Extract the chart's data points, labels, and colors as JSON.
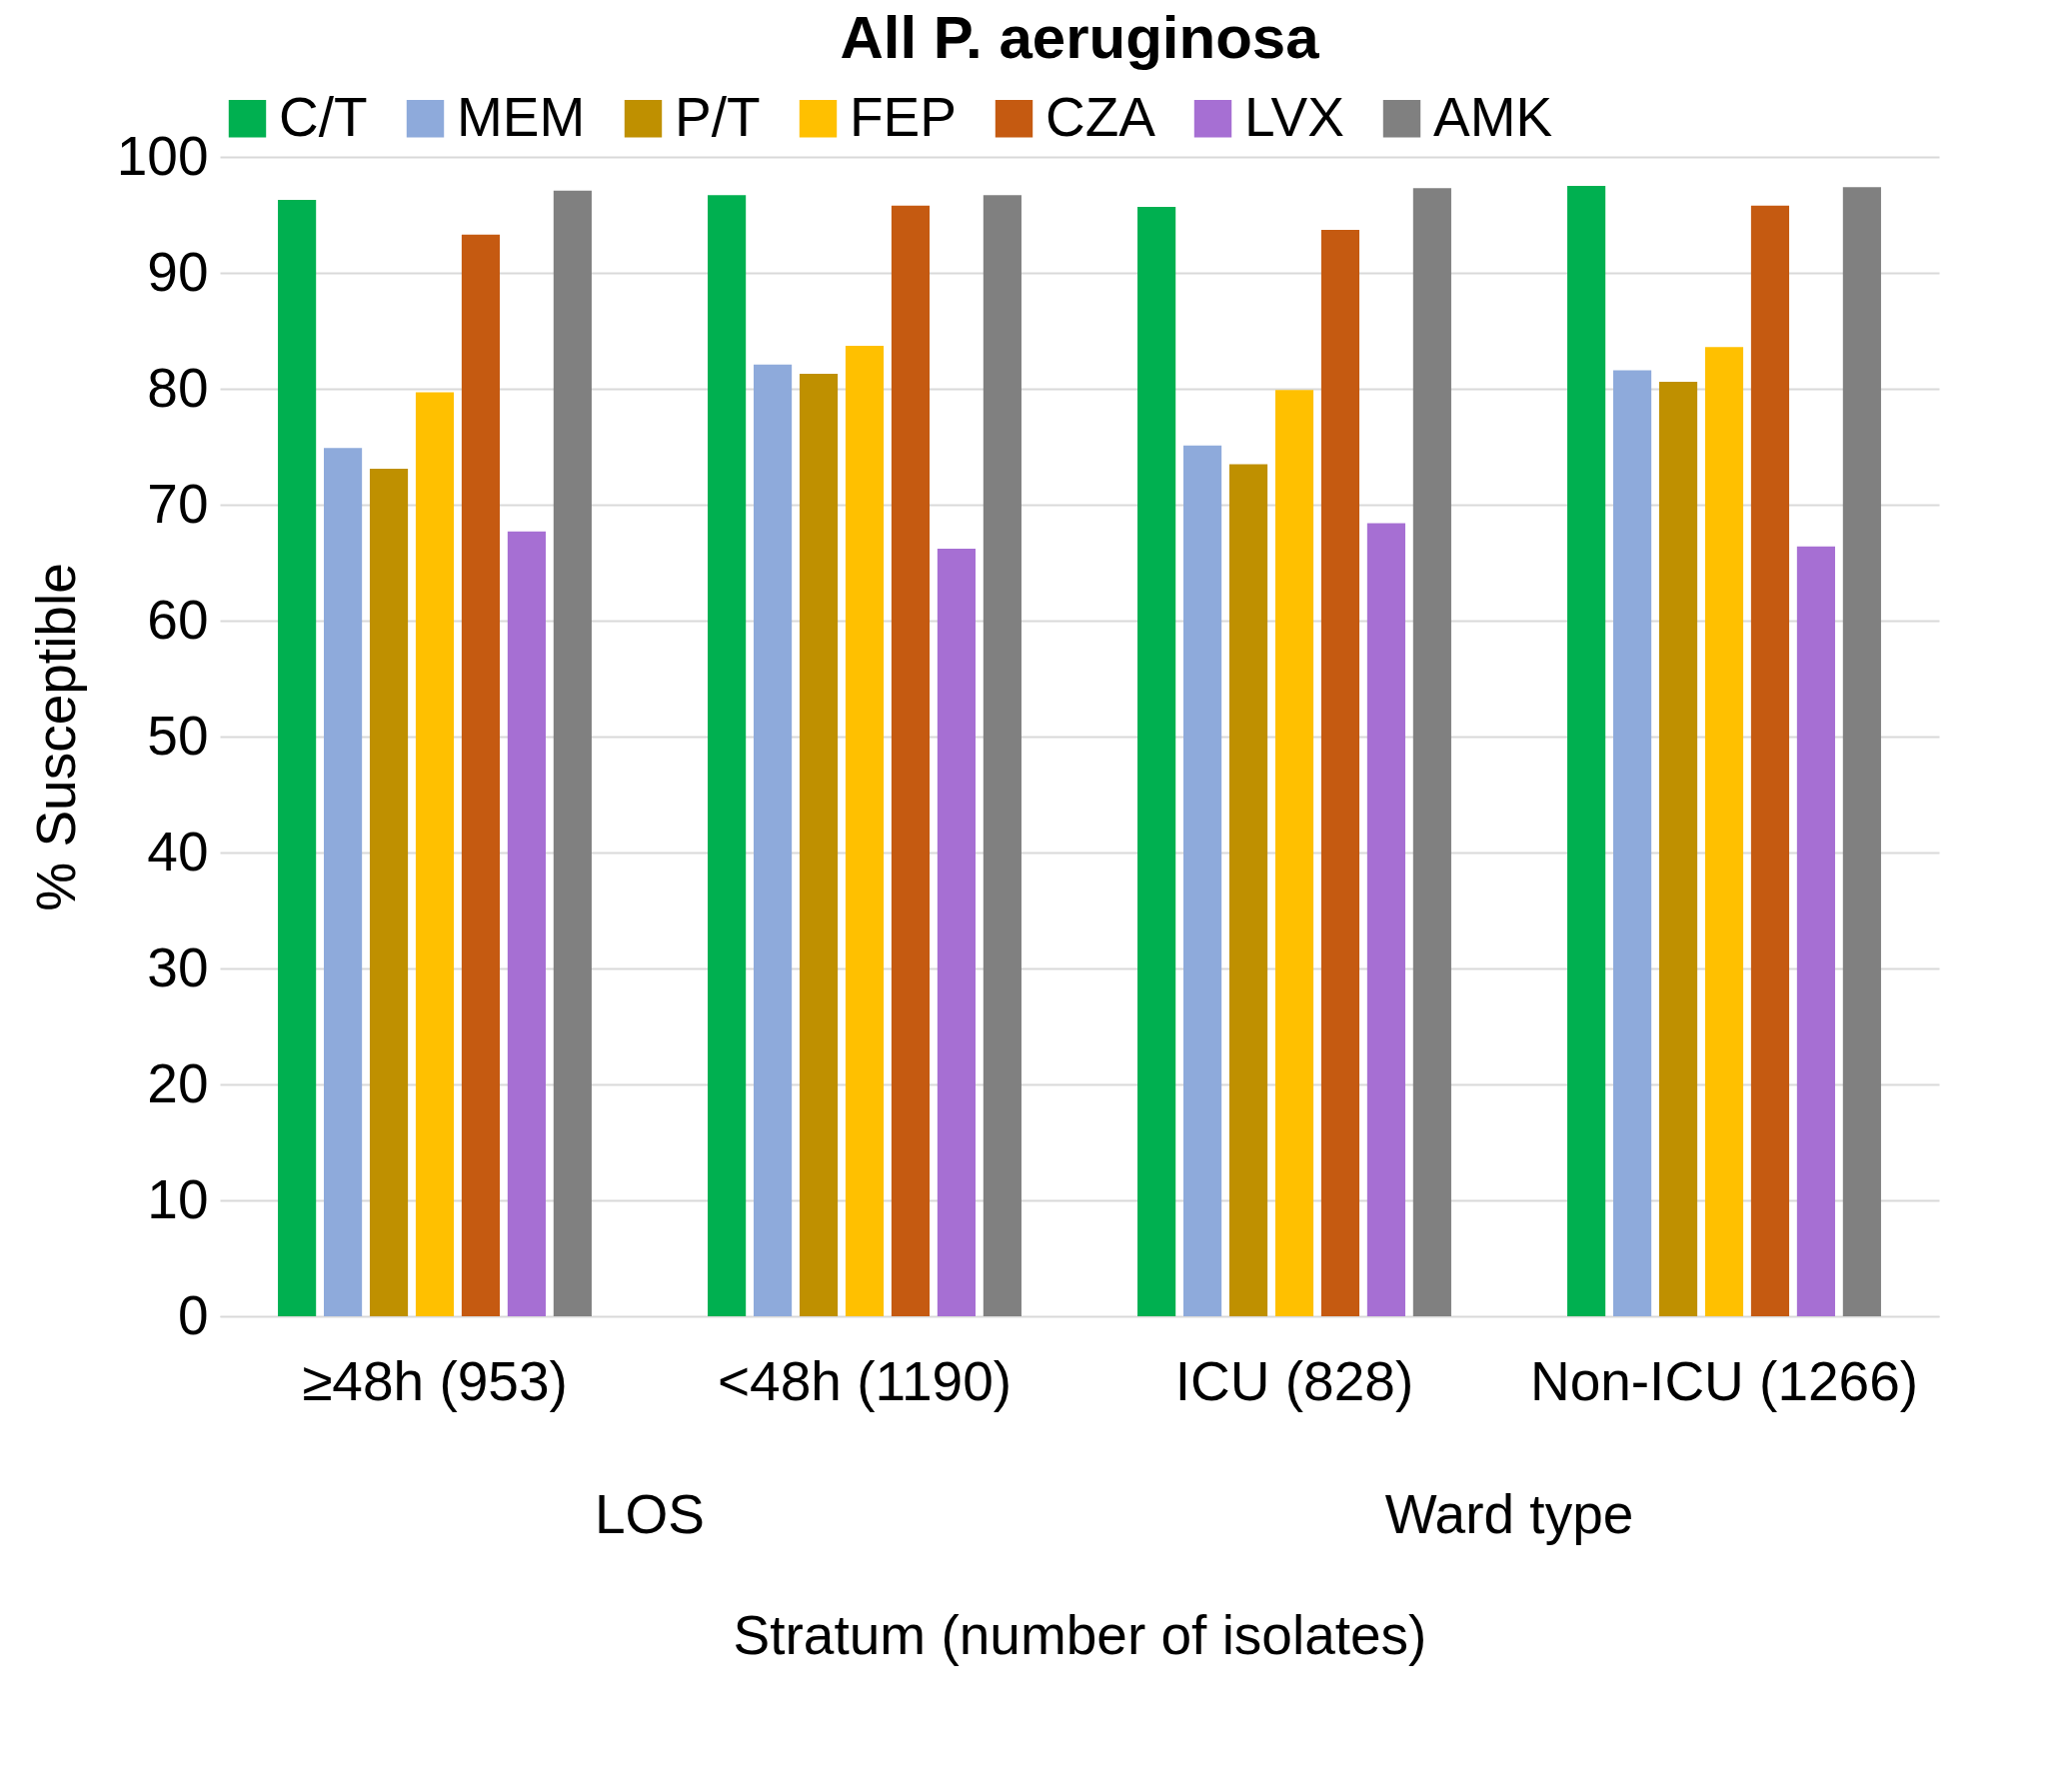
{
  "chart_data": {
    "type": "bar",
    "title": "All P. aeruginosa",
    "xlabel": "Stratum (number of isolates)",
    "ylabel": "% Susceptible",
    "categories": [
      "≥48h (953)",
      "<48h (1190)",
      "ICU (828)",
      "Non-ICU (1266)"
    ],
    "annotations": [
      "LOS",
      "Ward type"
    ],
    "series": [
      {
        "name": "C/T",
        "color": "#00b050",
        "values": [
          96.3,
          96.7,
          95.7,
          97.5
        ]
      },
      {
        "name": "MEM",
        "color": "#8eaadb",
        "values": [
          74.9,
          82.1,
          75.1,
          81.6
        ]
      },
      {
        "name": "P/T",
        "color": "#bf9000",
        "values": [
          73.1,
          81.3,
          73.5,
          80.6
        ]
      },
      {
        "name": "FEP",
        "color": "#ffc000",
        "values": [
          79.7,
          83.7,
          79.9,
          83.6
        ]
      },
      {
        "name": "CZA",
        "color": "#c55a11",
        "values": [
          93.3,
          95.8,
          93.7,
          95.8
        ]
      },
      {
        "name": "LVX",
        "color": "#a66fd3",
        "values": [
          67.7,
          66.2,
          68.4,
          66.4
        ]
      },
      {
        "name": "AMK",
        "color": "#808080",
        "values": [
          97.1,
          96.7,
          97.3,
          97.4
        ]
      }
    ],
    "ylim": [
      0,
      100
    ],
    "yticks": [
      0,
      10,
      20,
      30,
      40,
      50,
      60,
      70,
      80,
      90,
      100
    ],
    "grid": "y",
    "legend": "top"
  }
}
